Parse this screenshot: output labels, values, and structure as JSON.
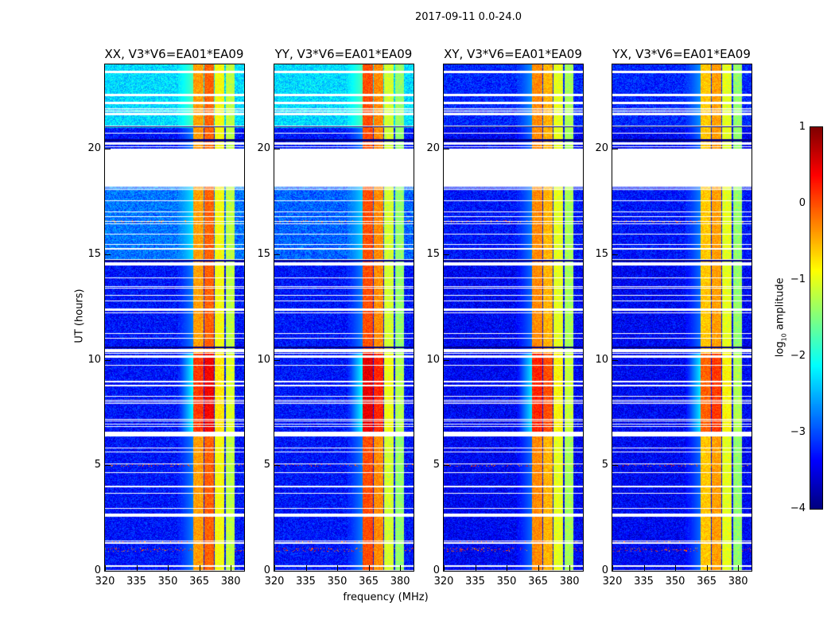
{
  "title": "2017-09-11 0.0-24.0",
  "chart_data": {
    "type": "heatmap",
    "title": "2017-09-11 0.0-24.0",
    "xlabel": "frequency (MHz)",
    "ylabel": "UT (hours)",
    "xlim": [
      320,
      386.4
    ],
    "ylim": [
      0,
      24
    ],
    "xticks": [
      320,
      335,
      350,
      365,
      380
    ],
    "yticks": [
      0,
      5,
      10,
      15,
      20
    ],
    "panels": [
      {
        "title": "XX, V3*V6=EA01*EA09",
        "bg": {
          "low": -3.3,
          "mid": -2.8,
          "top": -2.3
        },
        "bands": [
          -0.4,
          -0.1,
          -0.9,
          -1.2
        ],
        "night_boost": 0.5
      },
      {
        "title": "YY, V3*V6=EA01*EA09",
        "bg": {
          "low": -3.3,
          "mid": -2.9,
          "top": -2.3
        },
        "bands": [
          0.0,
          -0.3,
          -1.1,
          -1.4
        ],
        "night_boost": 0.5
      },
      {
        "title": "XY, V3*V6=EA01*EA09",
        "bg": {
          "low": -3.4,
          "mid": -3.3,
          "top": -3.2
        },
        "bands": [
          -0.3,
          -0.5,
          -1.0,
          -1.3
        ],
        "night_boost": 0.5
      },
      {
        "title": "YX, V3*V6=EA01*EA09",
        "bg": {
          "low": -3.4,
          "mid": -3.3,
          "top": -3.2
        },
        "bands": [
          -0.6,
          -0.4,
          -1.0,
          -1.4
        ],
        "night_boost": 0.5
      }
    ],
    "band_edges_mhz": [
      [
        362,
        367
      ],
      [
        367.5,
        372
      ],
      [
        372.5,
        377
      ],
      [
        377.5,
        382
      ]
    ],
    "flagged_ut": [
      [
        18.2,
        20.0
      ],
      [
        6.35,
        6.6
      ],
      [
        2.55,
        2.7
      ],
      [
        10.35,
        10.5
      ],
      [
        14.45,
        14.6
      ],
      [
        20.2,
        20.3
      ],
      [
        22.5,
        22.6
      ],
      [
        21.6,
        21.7
      ],
      [
        23.6,
        23.7
      ],
      [
        0.2,
        0.25
      ]
    ],
    "dropout_ut": [
      10.6,
      14.7,
      20.4,
      21.05
    ],
    "colorbar": {
      "label": "log10 amplitude",
      "range": [
        -4,
        1
      ],
      "ticks": [
        1,
        0,
        -1,
        -2,
        -3,
        -4
      ],
      "tick_labels": [
        "1",
        "0",
        "−1",
        "−2",
        "−3",
        "−4"
      ]
    }
  }
}
